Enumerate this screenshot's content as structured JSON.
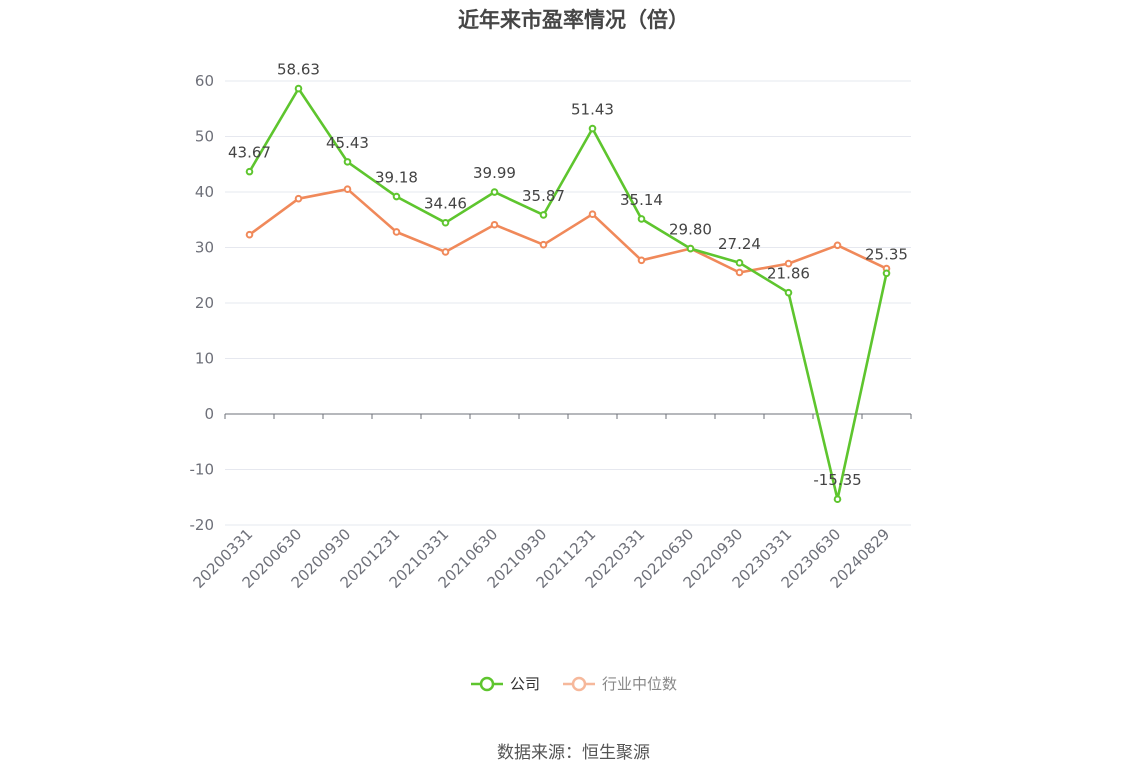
{
  "chart_data": {
    "type": "line",
    "title": "近年来市盈率情况（倍）",
    "categories": [
      "20200331",
      "20200630",
      "20200930",
      "20201231",
      "20210331",
      "20210630",
      "20210930",
      "20211231",
      "20220331",
      "20220630",
      "20220930",
      "20230331",
      "20230630",
      "20240829"
    ],
    "series": [
      {
        "name": "公司",
        "color": "#5ec52e",
        "values": [
          43.67,
          58.63,
          45.43,
          39.18,
          34.46,
          39.99,
          35.87,
          51.43,
          35.14,
          29.8,
          27.24,
          21.86,
          -15.35,
          25.35
        ],
        "labels": [
          "43.67",
          "58.63",
          "45.43",
          "39.18",
          "34.46",
          "39.99",
          "35.87",
          "51.43",
          "35.14",
          "29.80",
          "27.24",
          "21.86",
          "-15.35",
          "25.35"
        ],
        "show_labels": true
      },
      {
        "name": "行业中位数",
        "color": "#f0895a",
        "values": [
          32.3,
          38.8,
          40.5,
          32.8,
          29.2,
          34.1,
          30.5,
          36.0,
          27.7,
          29.8,
          25.5,
          27.1,
          30.4,
          26.2
        ],
        "show_labels": false
      }
    ],
    "yticks": [
      "60",
      "50",
      "40",
      "30",
      "20",
      "10",
      "0",
      "-10",
      "-20"
    ],
    "ylim": [
      -20,
      60
    ],
    "grid": true,
    "legend_position": "bottom-center"
  },
  "legend": {
    "company_label": "公司",
    "industry_label": "行业中位数"
  },
  "source": "数据来源：恒生聚源"
}
